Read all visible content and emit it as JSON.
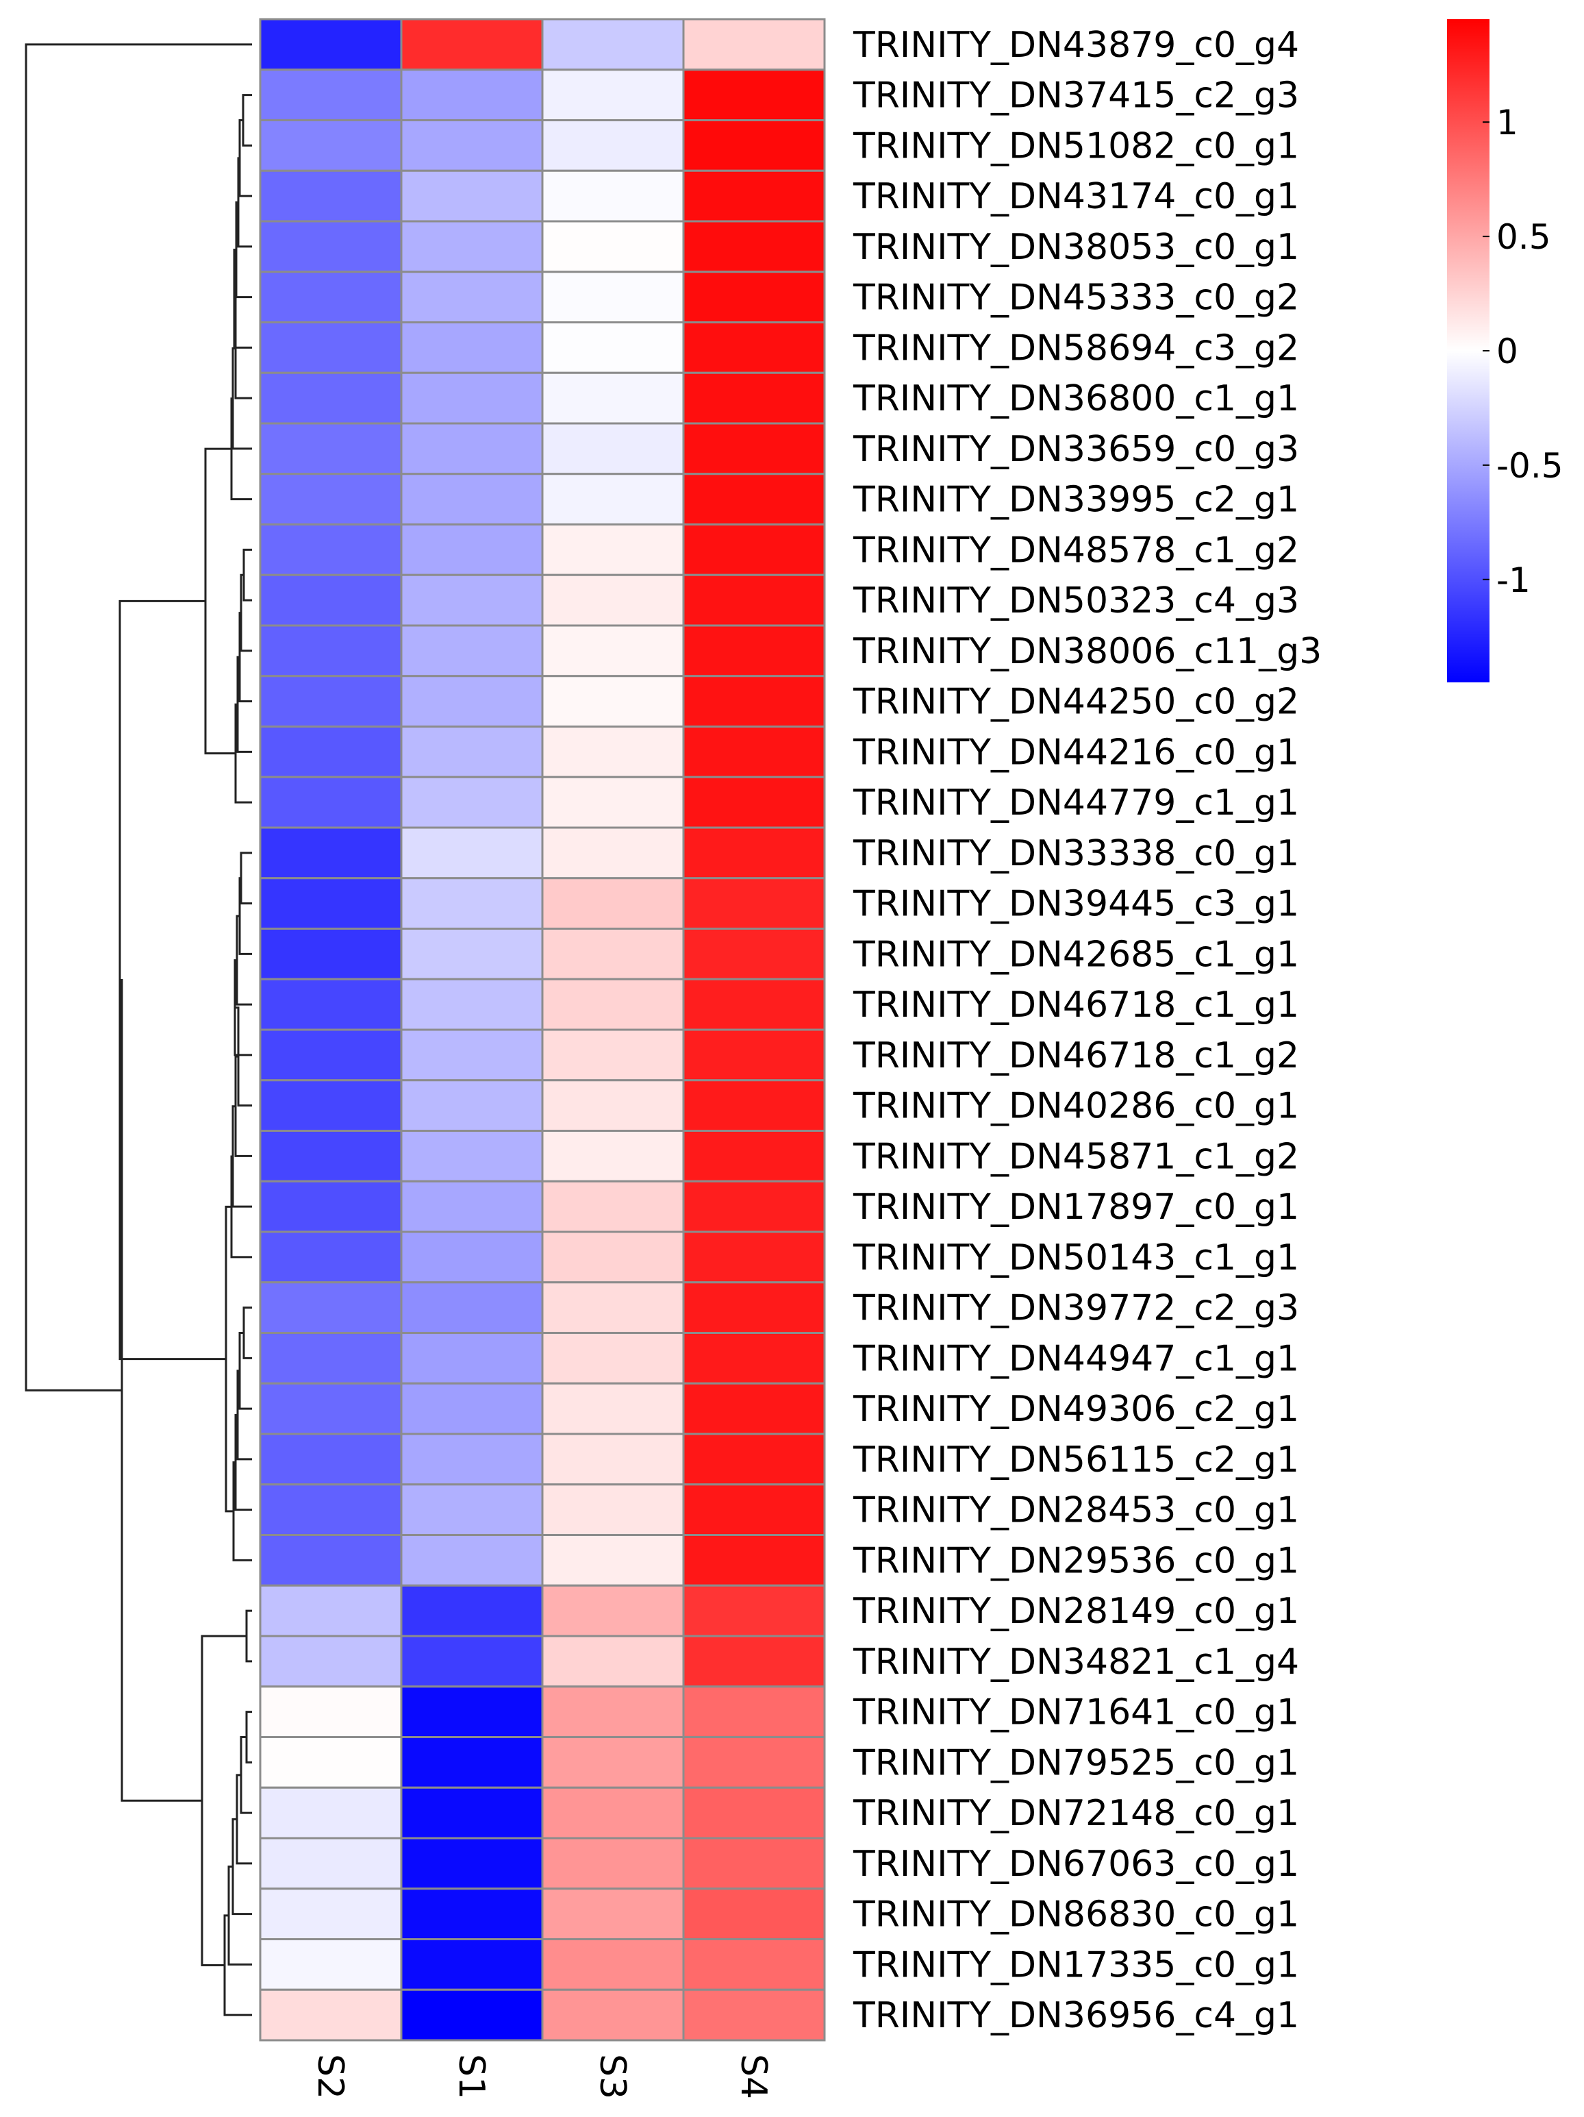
{
  "chart_data": {
    "type": "heatmap",
    "title": "",
    "columns": [
      "S2",
      "S1",
      "S3",
      "S4"
    ],
    "rows": [
      "TRINITY_DN43879_c0_g4",
      "TRINITY_DN37415_c2_g3",
      "TRINITY_DN51082_c0_g1",
      "TRINITY_DN43174_c0_g1",
      "TRINITY_DN38053_c0_g1",
      "TRINITY_DN45333_c0_g2",
      "TRINITY_DN58694_c3_g2",
      "TRINITY_DN36800_c1_g1",
      "TRINITY_DN33659_c0_g3",
      "TRINITY_DN33995_c2_g1",
      "TRINITY_DN48578_c1_g2",
      "TRINITY_DN50323_c4_g3",
      "TRINITY_DN38006_c11_g3",
      "TRINITY_DN44250_c0_g2",
      "TRINITY_DN44216_c0_g1",
      "TRINITY_DN44779_c1_g1",
      "TRINITY_DN33338_c0_g1",
      "TRINITY_DN39445_c3_g1",
      "TRINITY_DN42685_c1_g1",
      "TRINITY_DN46718_c1_g1",
      "TRINITY_DN46718_c1_g2",
      "TRINITY_DN40286_c0_g1",
      "TRINITY_DN45871_c1_g2",
      "TRINITY_DN17897_c0_g1",
      "TRINITY_DN50143_c1_g1",
      "TRINITY_DN39772_c2_g3",
      "TRINITY_DN44947_c1_g1",
      "TRINITY_DN49306_c2_g1",
      "TRINITY_DN56115_c2_g1",
      "TRINITY_DN28453_c0_g1",
      "TRINITY_DN29536_c0_g1",
      "TRINITY_DN28149_c0_g1",
      "TRINITY_DN34821_c1_g4",
      "TRINITY_DN71641_c0_g1",
      "TRINITY_DN79525_c0_g1",
      "TRINITY_DN72148_c0_g1",
      "TRINITY_DN67063_c0_g1",
      "TRINITY_DN86830_c0_g1",
      "TRINITY_DN17335_c0_g1",
      "TRINITY_DN36956_c4_g1"
    ],
    "values": [
      [
        -1.25,
        1.2,
        -0.3,
        0.25
      ],
      [
        -0.75,
        -0.55,
        -0.08,
        1.4
      ],
      [
        -0.7,
        -0.5,
        -0.1,
        1.4
      ],
      [
        -0.85,
        -0.4,
        -0.03,
        1.38
      ],
      [
        -0.85,
        -0.45,
        0.01,
        1.38
      ],
      [
        -0.85,
        -0.45,
        -0.02,
        1.38
      ],
      [
        -0.85,
        -0.5,
        -0.01,
        1.37
      ],
      [
        -0.85,
        -0.5,
        -0.05,
        1.37
      ],
      [
        -0.8,
        -0.5,
        -0.1,
        1.37
      ],
      [
        -0.8,
        -0.5,
        -0.07,
        1.37
      ],
      [
        -0.85,
        -0.5,
        0.08,
        1.36
      ],
      [
        -0.9,
        -0.45,
        0.1,
        1.35
      ],
      [
        -0.9,
        -0.45,
        0.06,
        1.35
      ],
      [
        -0.9,
        -0.45,
        0.04,
        1.35
      ],
      [
        -0.95,
        -0.4,
        0.09,
        1.34
      ],
      [
        -0.95,
        -0.35,
        0.08,
        1.34
      ],
      [
        -1.15,
        -0.2,
        0.1,
        1.3
      ],
      [
        -1.15,
        -0.3,
        0.3,
        1.25
      ],
      [
        -1.15,
        -0.3,
        0.25,
        1.25
      ],
      [
        -1.05,
        -0.35,
        0.25,
        1.28
      ],
      [
        -1.05,
        -0.4,
        0.2,
        1.28
      ],
      [
        -1.05,
        -0.4,
        0.15,
        1.3
      ],
      [
        -1.05,
        -0.45,
        0.1,
        1.3
      ],
      [
        -1.0,
        -0.5,
        0.25,
        1.28
      ],
      [
        -0.95,
        -0.55,
        0.25,
        1.28
      ],
      [
        -0.8,
        -0.65,
        0.2,
        1.3
      ],
      [
        -0.85,
        -0.55,
        0.2,
        1.3
      ],
      [
        -0.85,
        -0.55,
        0.15,
        1.32
      ],
      [
        -0.9,
        -0.5,
        0.15,
        1.32
      ],
      [
        -0.9,
        -0.45,
        0.15,
        1.32
      ],
      [
        -0.9,
        -0.45,
        0.1,
        1.32
      ],
      [
        -0.35,
        -1.15,
        0.45,
        1.15
      ],
      [
        -0.35,
        -1.1,
        0.25,
        1.18
      ],
      [
        0.02,
        -1.4,
        0.55,
        0.85
      ],
      [
        0.01,
        -1.4,
        0.55,
        0.85
      ],
      [
        -0.12,
        -1.4,
        0.6,
        0.9
      ],
      [
        -0.12,
        -1.4,
        0.6,
        0.9
      ],
      [
        -0.1,
        -1.4,
        0.55,
        0.95
      ],
      [
        -0.05,
        -1.4,
        0.65,
        0.85
      ],
      [
        0.2,
        -1.45,
        0.6,
        0.8
      ]
    ],
    "legend": {
      "ticks": [
        1,
        0.5,
        0,
        -0.5,
        -1
      ],
      "tick_labels": [
        "1",
        "0.5",
        "0",
        "-0.5",
        "-1"
      ],
      "min": -1.45,
      "max": 1.45,
      "low_color": "#0000ff",
      "mid_color": "#ffffff",
      "high_color": "#ff0000",
      "position": "top-right"
    },
    "dendrogram": {
      "position": "left",
      "order": "rows as listed"
    },
    "grid_color": "#8c8c8c"
  }
}
